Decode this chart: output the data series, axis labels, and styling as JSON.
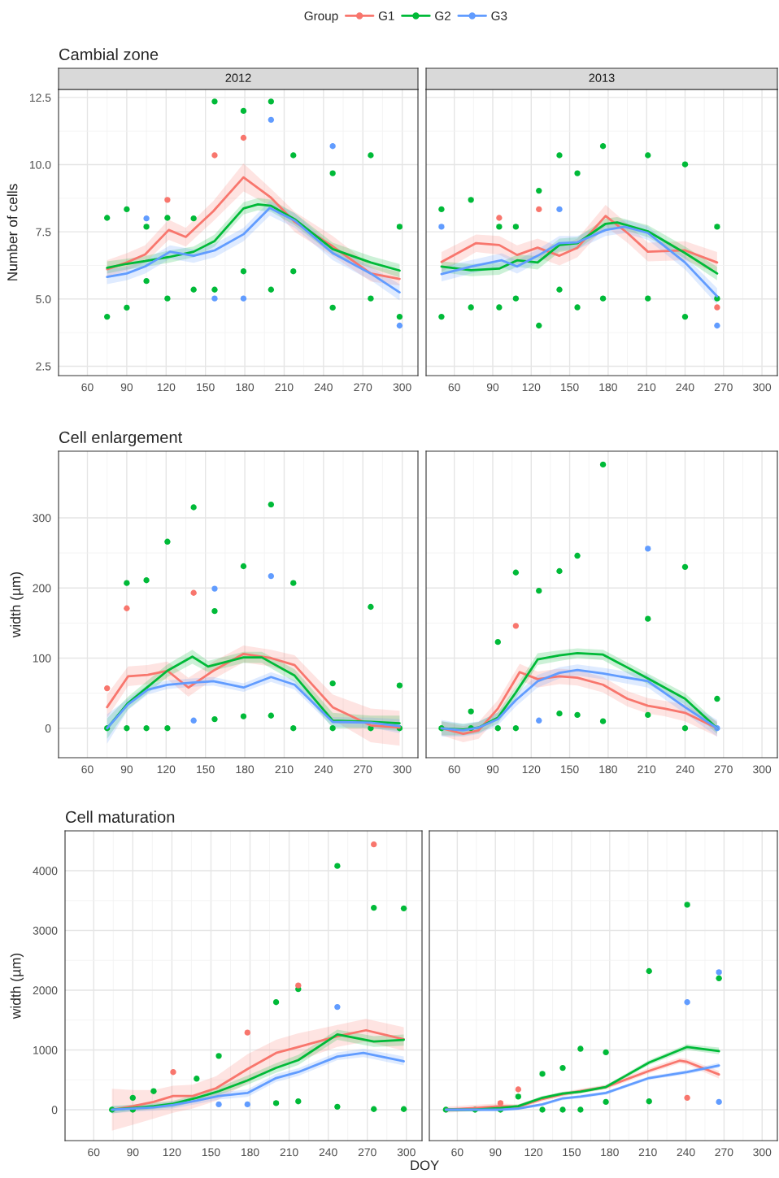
{
  "chart_data": [
    {
      "type": "line",
      "title": "Cambial zone",
      "subtitle": "2012",
      "ylabel": "Number of cells",
      "legend_title": "Group",
      "legend": "top",
      "grid": true,
      "xlim": [
        38,
        312
      ],
      "xticks": [
        60,
        90,
        120,
        150,
        180,
        210,
        240,
        270,
        300
      ],
      "ylim": [
        2.15,
        12.8
      ],
      "yticks": [
        2.5,
        {
          "value": 5,
          "label": "5.0"
        },
        7.5,
        {
          "value": 10,
          "label": "10.0"
        },
        12.5
      ],
      "series": [
        {
          "type": "scatter",
          "marker": "circle",
          "color": "#00ba38",
          "x": [
            75,
            75,
            90,
            90,
            105,
            105,
            121,
            121,
            141,
            141,
            157,
            157,
            179,
            179,
            200,
            200,
            217,
            217,
            247,
            247,
            276,
            276,
            298,
            298
          ],
          "values": [
            8.02,
            4.34,
            8.34,
            4.68,
            7.69,
            5.67,
            8.02,
            5.02,
            8.0,
            5.35,
            12.35,
            5.35,
            12.0,
            6.03,
            12.35,
            5.35,
            10.35,
            6.03,
            9.68,
            4.68,
            10.35,
            5.02,
            7.69,
            4.34
          ]
        },
        {
          "type": "scatter",
          "marker": "circle",
          "color": "#f8766d",
          "x": [
            121,
            157,
            179
          ],
          "values": [
            8.69,
            10.35,
            11.0
          ]
        },
        {
          "type": "scatter",
          "marker": "circle",
          "color": "#619cff",
          "x": [
            105,
            157,
            179,
            200,
            247,
            298
          ],
          "values": [
            8.0,
            5.02,
            5.02,
            11.67,
            10.69,
            4.01
          ]
        },
        {
          "name": "G1",
          "color": "#f8766d",
          "x": [
            75,
            90,
            104,
            122,
            135,
            156,
            179,
            200,
            218,
            247,
            276,
            298
          ],
          "values": [
            6.11,
            6.36,
            6.66,
            7.57,
            7.31,
            8.27,
            9.53,
            8.77,
            7.87,
            6.96,
            5.95,
            5.75
          ],
          "lower": [
            5.8,
            6.05,
            6.35,
            7.2,
            6.95,
            7.9,
            9.0,
            8.45,
            7.5,
            6.6,
            5.65,
            5.5
          ],
          "upper": [
            6.45,
            6.7,
            7.0,
            7.95,
            7.65,
            8.65,
            10.05,
            9.1,
            8.25,
            7.35,
            6.25,
            6.0
          ]
        },
        {
          "name": "G2",
          "color": "#00ba38",
          "x": [
            75,
            90,
            104,
            122,
            141,
            157,
            179,
            190,
            200,
            218,
            247,
            276,
            298
          ],
          "values": [
            6.16,
            6.31,
            6.41,
            6.56,
            6.76,
            7.16,
            8.37,
            8.52,
            8.47,
            7.97,
            6.86,
            6.36,
            6.06
          ],
          "lower": [
            5.95,
            6.1,
            6.2,
            6.35,
            6.55,
            6.95,
            8.15,
            8.3,
            8.25,
            7.75,
            6.65,
            6.15,
            5.8
          ],
          "upper": [
            6.4,
            6.5,
            6.6,
            6.8,
            6.95,
            7.4,
            8.6,
            8.75,
            8.7,
            8.2,
            7.1,
            6.6,
            6.3
          ]
        },
        {
          "name": "G3",
          "color": "#619cff",
          "x": [
            75,
            90,
            104,
            123,
            141,
            157,
            179,
            199,
            218,
            247,
            276,
            298
          ],
          "values": [
            5.82,
            5.95,
            6.21,
            6.76,
            6.61,
            6.81,
            7.41,
            8.39,
            7.92,
            6.71,
            5.95,
            5.25
          ],
          "lower": [
            5.55,
            5.7,
            5.95,
            6.5,
            6.35,
            6.55,
            7.15,
            8.1,
            7.65,
            6.45,
            5.7,
            4.95
          ],
          "upper": [
            6.1,
            6.2,
            6.45,
            7.0,
            6.85,
            7.05,
            7.65,
            8.65,
            8.2,
            6.95,
            6.2,
            5.55
          ]
        }
      ]
    },
    {
      "type": "line",
      "subtitle": "2013",
      "grid": true,
      "tick_labels": "x",
      "xlim": [
        38,
        312
      ],
      "xticks": [
        60,
        90,
        120,
        150,
        180,
        210,
        240,
        270,
        300
      ],
      "ylim": [
        2.15,
        12.8
      ],
      "yticks": [
        2.5,
        5,
        7.5,
        10,
        12.5
      ],
      "series": [
        {
          "type": "scatter",
          "marker": "circle",
          "color": "#00ba38",
          "x": [
            50,
            50,
            73,
            73,
            95,
            95,
            108,
            108,
            126,
            126,
            142,
            142,
            156,
            156,
            176,
            176,
            211,
            211,
            240,
            240,
            265,
            265
          ],
          "values": [
            8.34,
            4.34,
            8.69,
            4.69,
            7.69,
            4.69,
            7.69,
            5.02,
            9.03,
            4.01,
            10.35,
            5.35,
            9.68,
            4.69,
            10.69,
            5.02,
            10.35,
            5.02,
            10.01,
            4.34,
            7.69,
            5.02
          ]
        },
        {
          "type": "scatter",
          "marker": "circle",
          "color": "#f8766d",
          "x": [
            95,
            126,
            265
          ],
          "values": [
            8.02,
            8.34,
            4.69
          ]
        },
        {
          "type": "scatter",
          "marker": "circle",
          "color": "#619cff",
          "x": [
            50,
            142,
            265
          ],
          "values": [
            7.69,
            8.34,
            4.01
          ]
        },
        {
          "color": "#f8766d",
          "x": [
            50,
            77,
            95,
            109,
            125,
            142,
            156,
            178,
            195,
            211,
            240,
            265
          ],
          "values": [
            6.38,
            7.08,
            7.01,
            6.64,
            6.91,
            6.61,
            6.91,
            8.09,
            7.46,
            6.76,
            6.81,
            6.36
          ],
          "lower": [
            6.0,
            6.75,
            6.65,
            6.3,
            6.55,
            6.25,
            6.55,
            7.7,
            7.1,
            6.4,
            6.45,
            5.95
          ],
          "upper": [
            6.75,
            7.4,
            7.35,
            7.0,
            7.25,
            6.95,
            7.25,
            8.5,
            7.8,
            7.1,
            7.15,
            6.75
          ]
        },
        {
          "color": "#00ba38",
          "x": [
            50,
            73,
            95,
            109,
            125,
            142,
            156,
            178,
            187,
            211,
            240,
            265
          ],
          "values": [
            6.21,
            6.07,
            6.13,
            6.44,
            6.36,
            7.01,
            7.08,
            7.8,
            7.85,
            7.52,
            6.71,
            5.95
          ],
          "lower": [
            6.0,
            5.85,
            5.9,
            6.2,
            6.1,
            6.75,
            6.85,
            7.6,
            7.65,
            7.3,
            6.5,
            5.7
          ],
          "upper": [
            6.4,
            6.3,
            6.35,
            6.65,
            6.6,
            7.25,
            7.3,
            8.0,
            8.05,
            7.75,
            6.95,
            6.2
          ]
        },
        {
          "color": "#619cff",
          "x": [
            50,
            73,
            97,
            109,
            125,
            142,
            156,
            178,
            193,
            211,
            240,
            265
          ],
          "values": [
            5.93,
            6.21,
            6.44,
            6.21,
            6.61,
            7.08,
            7.11,
            7.57,
            7.69,
            7.46,
            6.36,
            5.1
          ],
          "lower": [
            5.65,
            5.95,
            6.2,
            5.95,
            6.35,
            6.8,
            6.85,
            7.35,
            7.45,
            7.2,
            6.1,
            4.8
          ],
          "upper": [
            6.2,
            6.45,
            6.7,
            6.45,
            6.85,
            7.35,
            7.35,
            7.8,
            7.95,
            7.7,
            6.6,
            5.4
          ]
        }
      ]
    },
    {
      "type": "line",
      "title": "Cell enlargement",
      "ylabel": "width (µm)",
      "grid": true,
      "xlim": [
        38,
        312
      ],
      "xticks": [
        60,
        90,
        120,
        150,
        180,
        210,
        240,
        270,
        300
      ],
      "ylim": [
        -42,
        395
      ],
      "yticks": [
        0,
        100,
        200,
        300
      ],
      "series": [
        {
          "type": "scatter",
          "marker": "circle",
          "color": "#00ba38",
          "x": [
            75,
            90,
            90,
            105,
            105,
            121,
            121,
            141,
            157,
            157,
            179,
            179,
            200,
            200,
            217,
            217,
            247,
            247,
            276,
            276,
            298,
            298
          ],
          "values": [
            0,
            207,
            0,
            211,
            0,
            266,
            0,
            315,
            167,
            13,
            231,
            17,
            319,
            18,
            207,
            0,
            64,
            0,
            173,
            0,
            61,
            0
          ]
        },
        {
          "type": "scatter",
          "marker": "circle",
          "color": "#f8766d",
          "x": [
            75,
            90,
            141
          ],
          "values": [
            57,
            171,
            193
          ]
        },
        {
          "type": "scatter",
          "marker": "circle",
          "color": "#619cff",
          "x": [
            141,
            157,
            200
          ],
          "values": [
            11,
            199,
            217
          ]
        },
        {
          "color": "#f8766d",
          "x": [
            75,
            91,
            106,
            121,
            137,
            156,
            179,
            200,
            218,
            247,
            276,
            298
          ],
          "values": [
            30,
            74,
            76,
            82,
            58,
            82,
            106,
            100,
            90,
            30,
            4,
            1
          ],
          "lower": [
            15,
            60,
            63,
            70,
            45,
            70,
            94,
            88,
            76,
            12,
            -20,
            -25
          ],
          "upper": [
            48,
            88,
            90,
            95,
            72,
            95,
            118,
            112,
            104,
            48,
            28,
            25
          ]
        },
        {
          "color": "#00ba38",
          "x": [
            75,
            91,
            106,
            121,
            140,
            152,
            179,
            193,
            218,
            247,
            276,
            298
          ],
          "values": [
            0,
            36,
            59,
            82,
            102,
            88,
            101,
            101,
            75,
            11,
            9,
            7
          ],
          "lower": [
            -15,
            27,
            50,
            73,
            92,
            80,
            93,
            93,
            66,
            0,
            0,
            -4
          ],
          "upper": [
            14,
            45,
            68,
            91,
            112,
            96,
            109,
            109,
            84,
            22,
            18,
            18
          ]
        },
        {
          "color": "#619cff",
          "x": [
            75,
            91,
            106,
            121,
            140,
            156,
            179,
            200,
            218,
            247,
            276,
            298
          ],
          "values": [
            0,
            34,
            55,
            62,
            65,
            67,
            58,
            73,
            62,
            9,
            8,
            3
          ],
          "lower": [
            -22,
            26,
            48,
            56,
            59,
            61,
            52,
            66,
            55,
            2,
            1,
            -7
          ],
          "upper": [
            20,
            42,
            62,
            68,
            71,
            73,
            64,
            80,
            69,
            16,
            15,
            13
          ]
        }
      ]
    },
    {
      "type": "line",
      "grid": true,
      "tick_labels": "x",
      "xlim": [
        38,
        312
      ],
      "xticks": [
        60,
        90,
        120,
        150,
        180,
        210,
        240,
        270,
        300
      ],
      "ylim": [
        -42,
        395
      ],
      "yticks": [
        0,
        100,
        200,
        300
      ],
      "series": [
        {
          "type": "scatter",
          "marker": "circle",
          "color": "#00ba38",
          "x": [
            50,
            73,
            73,
            94,
            94,
            108,
            108,
            126,
            142,
            142,
            156,
            156,
            176,
            176,
            211,
            211,
            240,
            240,
            265
          ],
          "values": [
            0,
            24,
            0,
            123,
            0,
            222,
            0,
            196,
            224,
            21,
            246,
            19,
            376,
            10,
            156,
            19,
            230,
            0,
            42
          ]
        },
        {
          "type": "scatter",
          "marker": "circle",
          "color": "#f8766d",
          "x": [
            108
          ],
          "values": [
            146
          ]
        },
        {
          "type": "scatter",
          "marker": "circle",
          "color": "#619cff",
          "x": [
            126,
            211,
            265
          ],
          "values": [
            11,
            256,
            0
          ]
        },
        {
          "color": "#f8766d",
          "x": [
            50,
            67,
            79,
            94,
            111,
            125,
            142,
            156,
            176,
            195,
            211,
            224,
            240,
            265
          ],
          "values": [
            0,
            -8,
            -3,
            28,
            80,
            70,
            74,
            72,
            62,
            42,
            32,
            28,
            22,
            0
          ],
          "lower": [
            -10,
            -20,
            -15,
            16,
            68,
            58,
            63,
            61,
            51,
            31,
            21,
            17,
            10,
            -12
          ],
          "upper": [
            10,
            3,
            9,
            40,
            92,
            81,
            85,
            83,
            73,
            53,
            43,
            39,
            34,
            10
          ]
        },
        {
          "color": "#00ba38",
          "x": [
            50,
            67,
            79,
            94,
            108,
            125,
            142,
            156,
            176,
            211,
            240,
            265
          ],
          "values": [
            0,
            -2,
            1,
            15,
            51,
            98,
            104,
            107,
            105,
            71,
            42,
            0
          ],
          "lower": [
            -10,
            -10,
            -7,
            7,
            43,
            90,
            96,
            100,
            97,
            63,
            34,
            -8
          ],
          "upper": [
            10,
            6,
            9,
            23,
            59,
            107,
            111,
            114,
            112,
            78,
            50,
            8
          ]
        },
        {
          "color": "#619cff",
          "x": [
            50,
            67,
            79,
            94,
            108,
            125,
            142,
            156,
            176,
            211,
            240,
            265
          ],
          "values": [
            0,
            -3,
            1,
            13,
            40,
            67,
            79,
            83,
            78,
            67,
            30,
            0
          ],
          "lower": [
            -12,
            -12,
            -8,
            4,
            31,
            58,
            71,
            75,
            70,
            58,
            21,
            -12
          ],
          "upper": [
            12,
            6,
            10,
            22,
            49,
            76,
            87,
            91,
            86,
            76,
            39,
            12
          ]
        }
      ]
    },
    {
      "type": "line",
      "title": "Cell maturation",
      "ylabel": "width (µm)",
      "xlabel": "DOY",
      "grid": true,
      "xlim": [
        38,
        312
      ],
      "xticks": [
        60,
        90,
        120,
        150,
        180,
        210,
        240,
        270,
        300
      ],
      "ylim": [
        -517,
        4667
      ],
      "yticks": [
        0,
        1000,
        2000,
        3000,
        4000
      ],
      "series": [
        {
          "type": "scatter",
          "marker": "circle",
          "color": "#00ba38",
          "x": [
            74,
            90,
            90,
            106,
            139,
            156,
            200,
            200,
            217,
            217,
            247,
            247,
            275,
            275,
            298,
            298
          ],
          "values": [
            0,
            200,
            0,
            310,
            520,
            900,
            1800,
            110,
            2020,
            140,
            4080,
            50,
            3380,
            10,
            3370,
            10
          ]
        },
        {
          "type": "scatter",
          "marker": "circle",
          "color": "#f8766d",
          "x": [
            121,
            178,
            217,
            275
          ],
          "values": [
            630,
            1290,
            2080,
            4440
          ]
        },
        {
          "type": "scatter",
          "marker": "circle",
          "color": "#619cff",
          "x": [
            156,
            178,
            247
          ],
          "values": [
            90,
            90,
            1720
          ]
        },
        {
          "color": "#f8766d",
          "x": [
            74,
            90,
            106,
            121,
            136,
            154,
            178,
            200,
            217,
            247,
            269,
            298
          ],
          "values": [
            0,
            60,
            130,
            230,
            230,
            360,
            680,
            950,
            1050,
            1230,
            1330,
            1180
          ],
          "lower": [
            -350,
            -250,
            -150,
            -50,
            20,
            150,
            450,
            720,
            820,
            1050,
            1140,
            990
          ],
          "upper": [
            350,
            330,
            330,
            400,
            420,
            560,
            930,
            1170,
            1280,
            1420,
            1520,
            1380
          ]
        },
        {
          "color": "#00ba38",
          "x": [
            74,
            90,
            106,
            121,
            139,
            156,
            178,
            200,
            217,
            247,
            275,
            298
          ],
          "values": [
            0,
            30,
            60,
            100,
            200,
            310,
            490,
            700,
            830,
            1260,
            1140,
            1170
          ],
          "lower": [
            -60,
            -20,
            10,
            40,
            140,
            250,
            420,
            620,
            750,
            1170,
            1050,
            1070
          ],
          "upper": [
            60,
            85,
            115,
            150,
            260,
            375,
            570,
            780,
            920,
            1340,
            1230,
            1260
          ]
        },
        {
          "color": "#619cff",
          "x": [
            74,
            90,
            106,
            121,
            139,
            156,
            178,
            200,
            217,
            247,
            267,
            298
          ],
          "values": [
            0,
            20,
            40,
            80,
            150,
            230,
            280,
            530,
            630,
            890,
            950,
            810
          ],
          "lower": [
            -60,
            -35,
            -15,
            20,
            95,
            170,
            215,
            465,
            565,
            830,
            880,
            740
          ],
          "upper": [
            60,
            75,
            95,
            135,
            215,
            290,
            340,
            600,
            695,
            960,
            1020,
            890
          ]
        }
      ]
    },
    {
      "type": "line",
      "grid": true,
      "tick_labels": "x",
      "xlim": [
        38,
        312
      ],
      "xticks": [
        60,
        90,
        120,
        150,
        180,
        210,
        240,
        270,
        300
      ],
      "ylim": [
        -517,
        4667
      ],
      "yticks": [
        0,
        1000,
        2000,
        3000,
        4000
      ],
      "series": [
        {
          "type": "scatter",
          "marker": "circle",
          "color": "#00ba38",
          "x": [
            51,
            74,
            94,
            108,
            127,
            127,
            143,
            143,
            157,
            157,
            177,
            177,
            211,
            211,
            241,
            266
          ],
          "values": [
            0,
            0,
            0,
            220,
            600,
            0,
            700,
            0,
            1020,
            0,
            960,
            130,
            2320,
            140,
            3430,
            2200
          ]
        },
        {
          "type": "scatter",
          "marker": "circle",
          "color": "#f8766d",
          "x": [
            94,
            108,
            241
          ],
          "values": [
            110,
            340,
            200
          ]
        },
        {
          "type": "scatter",
          "marker": "circle",
          "color": "#619cff",
          "x": [
            266,
            266,
            241
          ],
          "values": [
            2300,
            130,
            1800
          ]
        },
        {
          "color": "#f8766d",
          "x": [
            51,
            74,
            94,
            108,
            127,
            143,
            157,
            177,
            211,
            235,
            241,
            266
          ],
          "values": [
            0,
            30,
            60,
            50,
            180,
            260,
            310,
            380,
            650,
            820,
            800,
            590
          ],
          "lower": [
            -50,
            -20,
            20,
            10,
            140,
            220,
            275,
            340,
            610,
            775,
            755,
            520
          ],
          "upper": [
            50,
            80,
            105,
            90,
            215,
            295,
            350,
            420,
            700,
            870,
            850,
            650
          ]
        },
        {
          "color": "#00ba38",
          "x": [
            51,
            74,
            94,
            108,
            127,
            143,
            157,
            177,
            211,
            241,
            266
          ],
          "values": [
            0,
            0,
            30,
            60,
            200,
            270,
            300,
            380,
            790,
            1050,
            980
          ],
          "lower": [
            -30,
            -25,
            5,
            35,
            170,
            235,
            275,
            350,
            750,
            1000,
            930
          ],
          "upper": [
            30,
            25,
            60,
            90,
            230,
            300,
            335,
            410,
            830,
            1095,
            1040
          ]
        },
        {
          "color": "#619cff",
          "x": [
            51,
            74,
            94,
            108,
            127,
            143,
            157,
            177,
            211,
            241,
            266
          ],
          "values": [
            0,
            0,
            0,
            20,
            90,
            190,
            220,
            280,
            530,
            630,
            740
          ],
          "lower": [
            -30,
            -25,
            -25,
            -5,
            60,
            160,
            195,
            250,
            500,
            595,
            705
          ],
          "upper": [
            30,
            25,
            25,
            45,
            110,
            210,
            250,
            305,
            560,
            665,
            785
          ]
        }
      ]
    }
  ]
}
